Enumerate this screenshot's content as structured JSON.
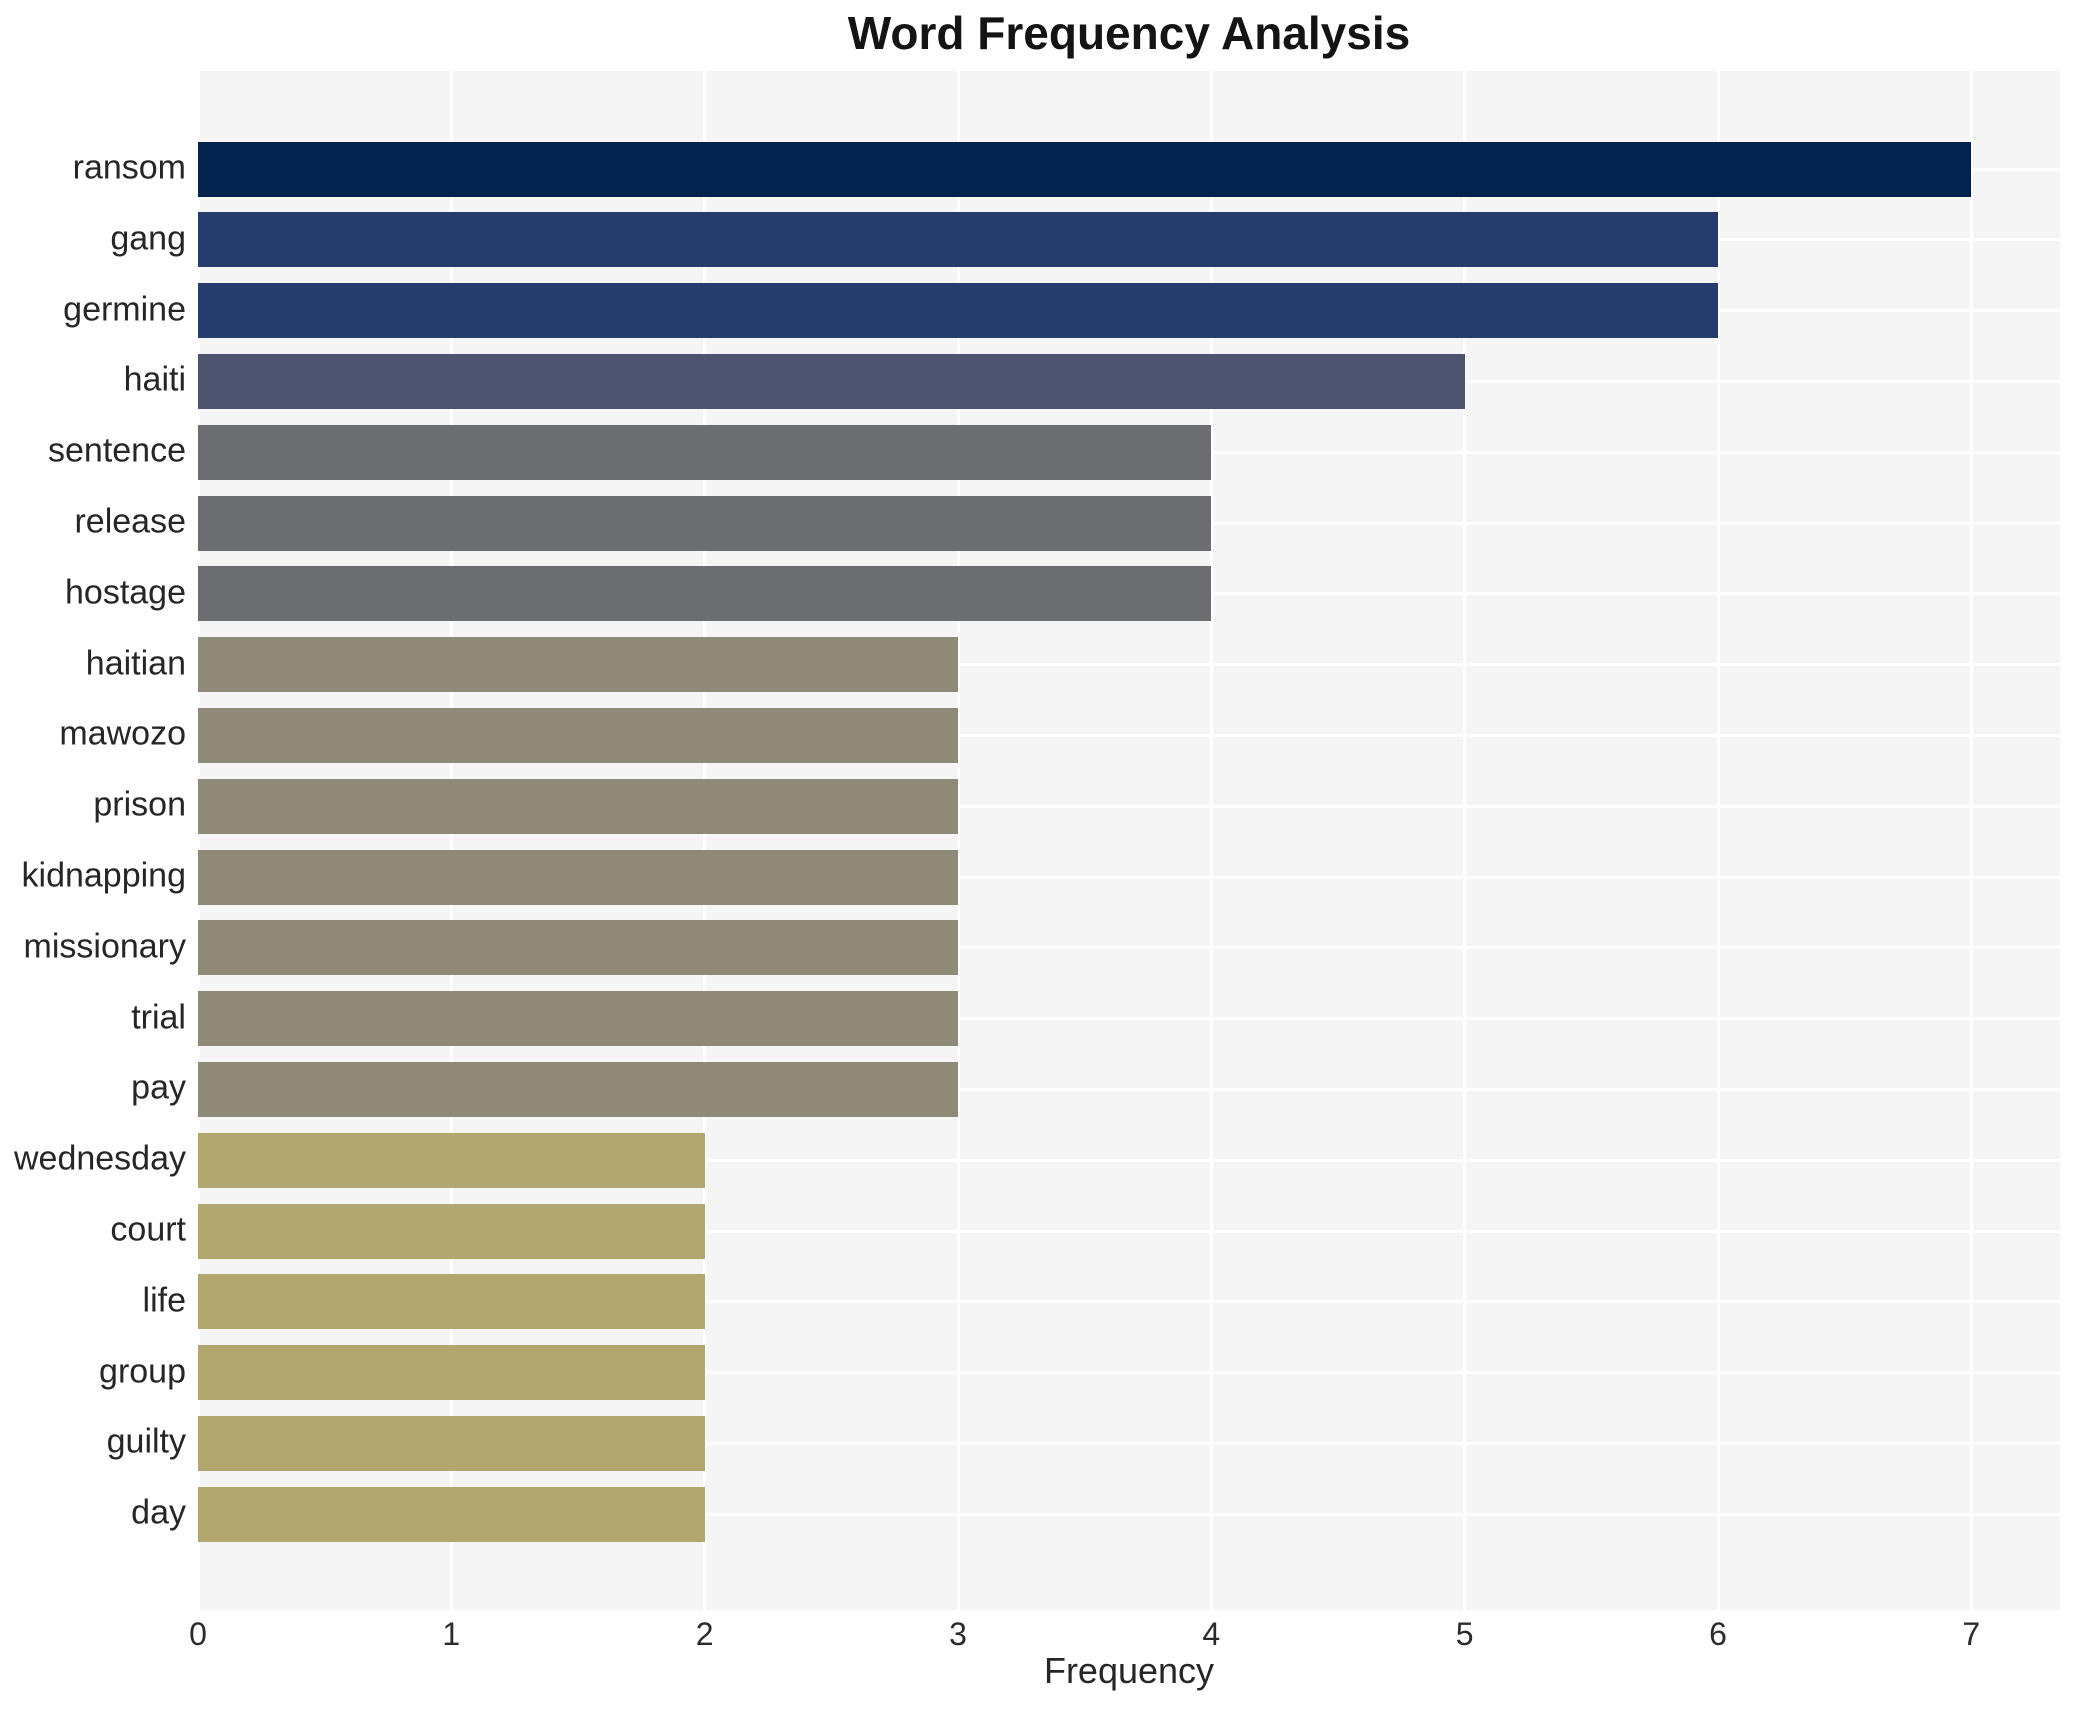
{
  "chart_data": {
    "type": "bar",
    "orientation": "horizontal",
    "title": "Word Frequency Analysis",
    "xlabel": "Frequency",
    "ylabel": "",
    "categories": [
      "ransom",
      "gang",
      "germine",
      "haiti",
      "sentence",
      "release",
      "hostage",
      "haitian",
      "mawozo",
      "prison",
      "kidnapping",
      "missionary",
      "trial",
      "pay",
      "wednesday",
      "court",
      "life",
      "group",
      "guilty",
      "day"
    ],
    "values": [
      7,
      6,
      6,
      5,
      4,
      4,
      4,
      3,
      3,
      3,
      3,
      3,
      3,
      3,
      2,
      2,
      2,
      2,
      2,
      2
    ],
    "bar_colors": [
      "#03224e",
      "#243d6c",
      "#243d6c",
      "#4d5470",
      "#6c6d71",
      "#6c6d71",
      "#6c6d71",
      "#8e8a77",
      "#8e8a77",
      "#8e8a77",
      "#8e8a77",
      "#8e8a77",
      "#8e8a77",
      "#8e8a77",
      "#b1a76f",
      "#b1a76f",
      "#b1a76f",
      "#b1a76f",
      "#b1a76f",
      "#b1a76f"
    ],
    "xticks": [
      0,
      1,
      2,
      3,
      4,
      5,
      6,
      7
    ],
    "xlim": [
      0,
      7.35
    ],
    "grid": true,
    "legend": false,
    "plot_bg_color": "#f5f5f6",
    "grid_color": "#ffffff",
    "title_color": "#141414",
    "text_color": "#262626"
  }
}
